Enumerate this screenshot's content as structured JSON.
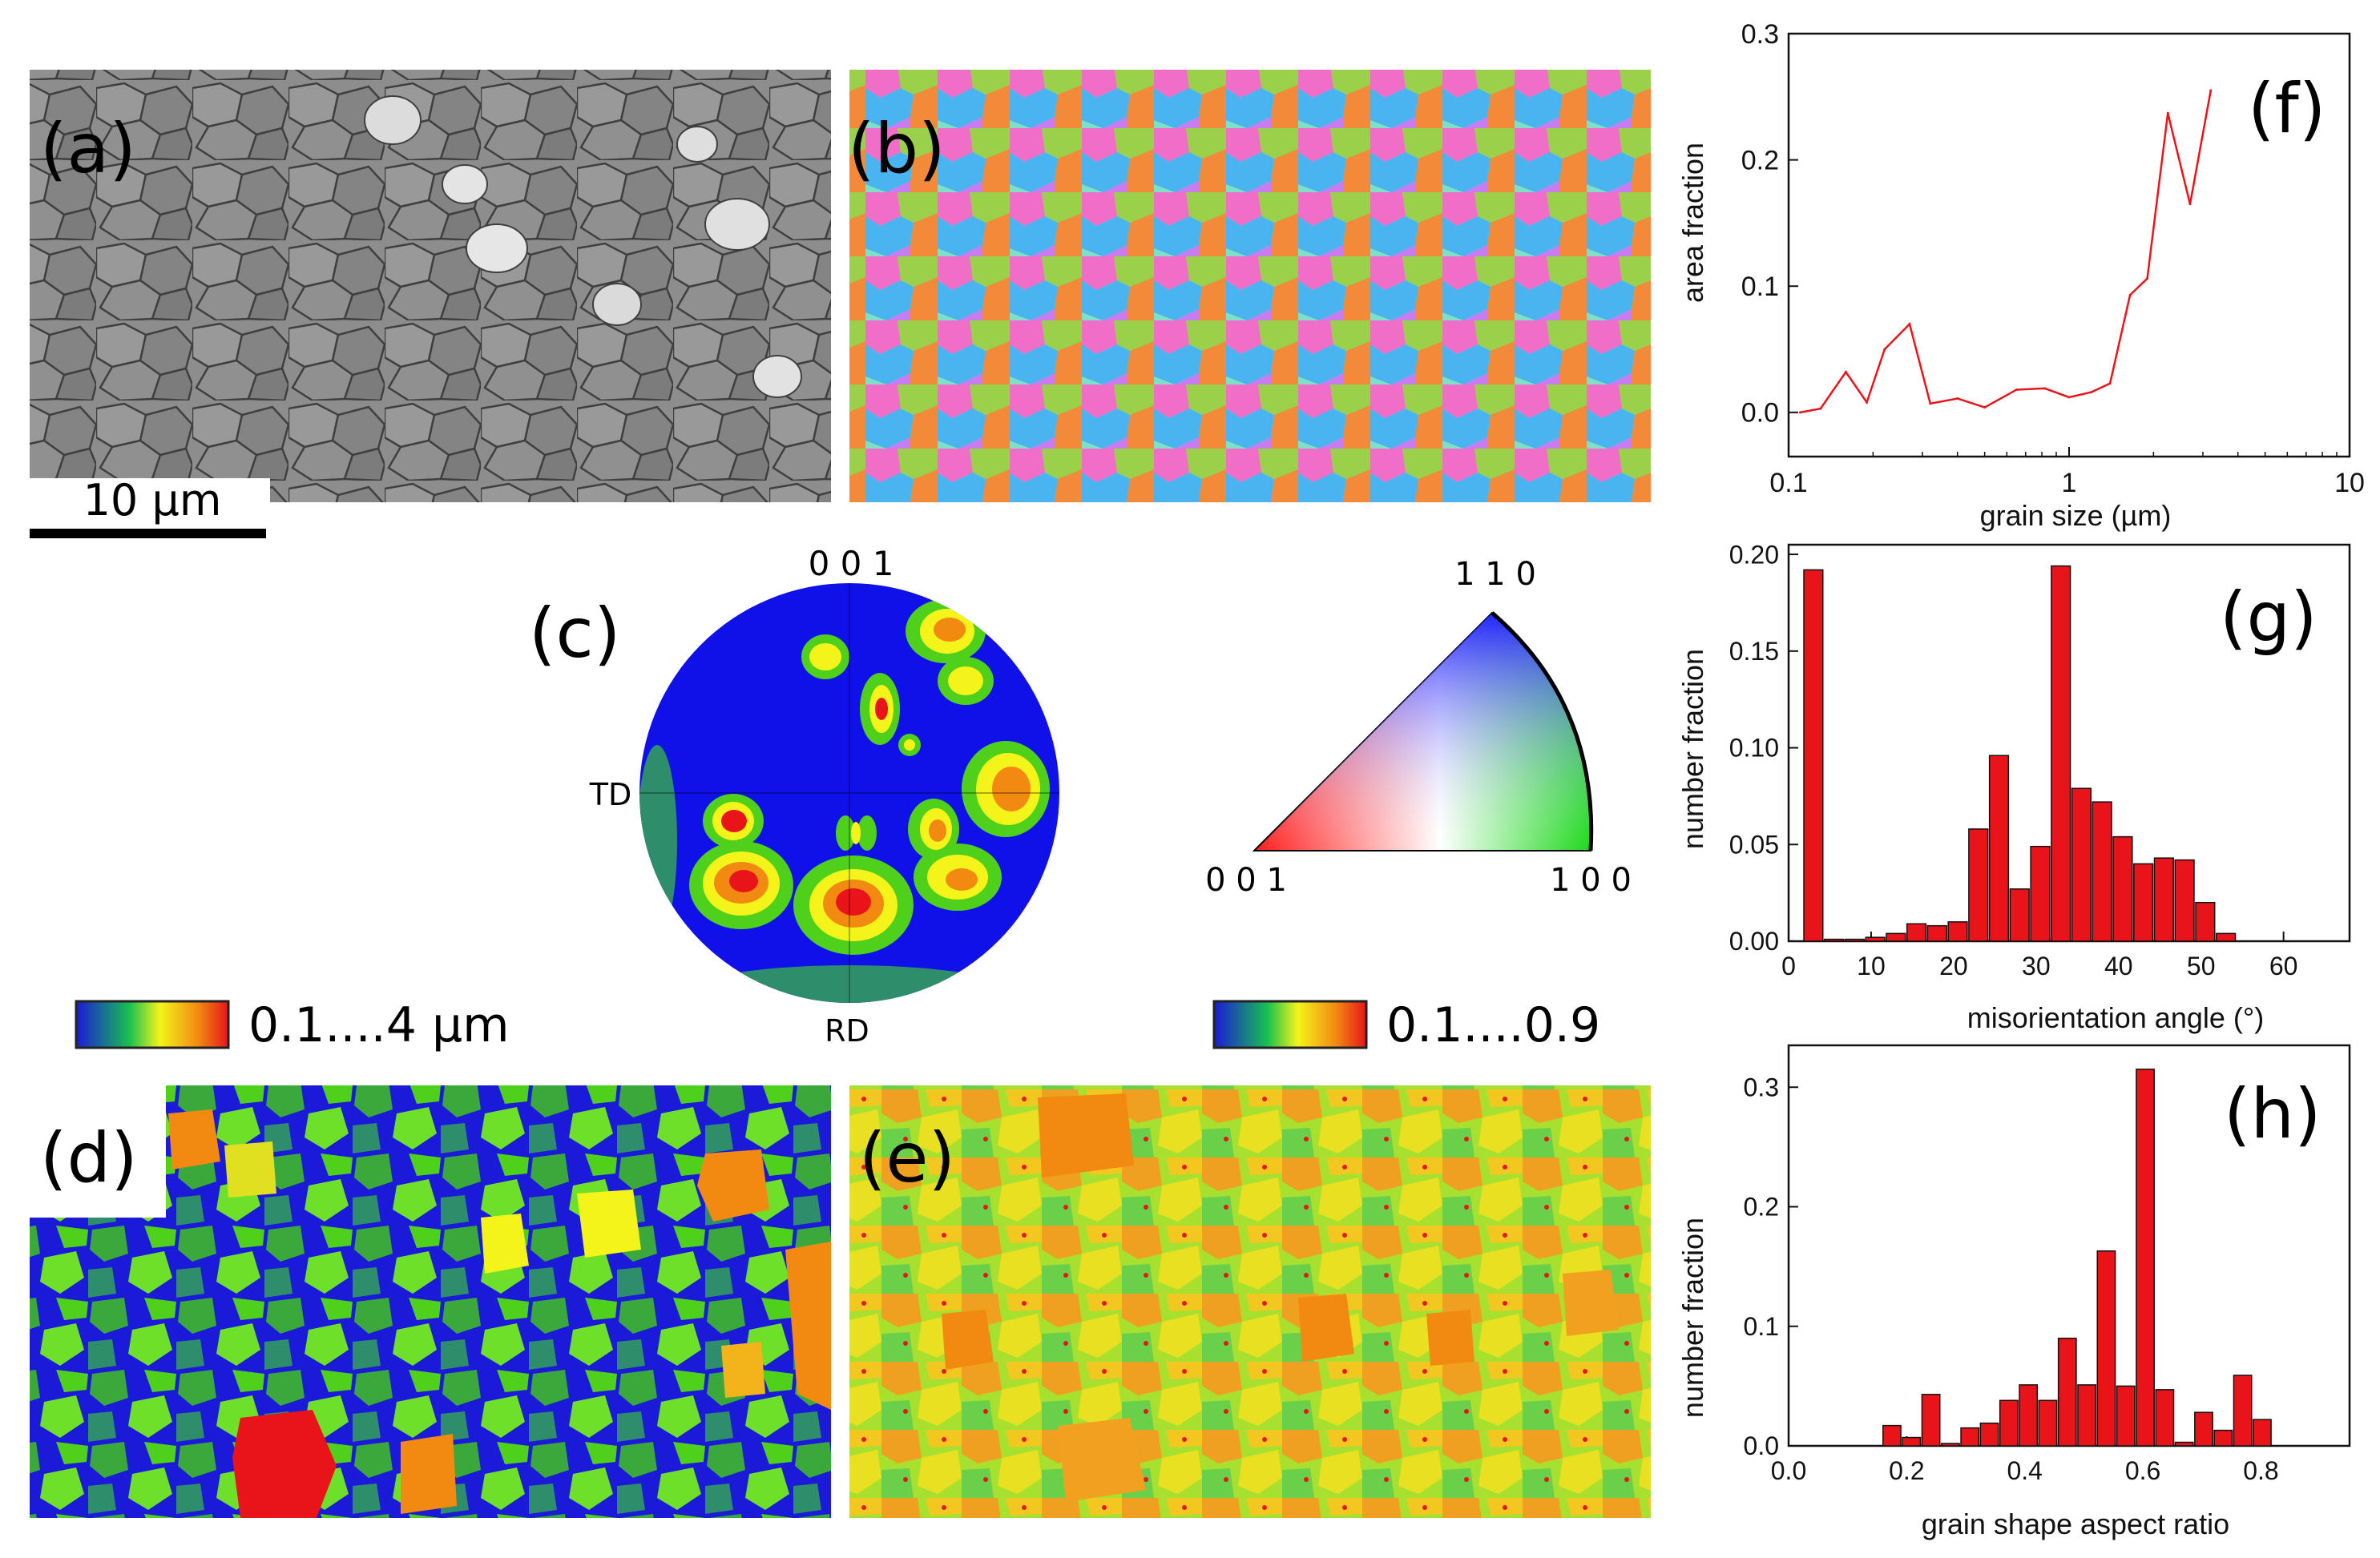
{
  "panel_labels": [
    "(a)",
    "(b)",
    "(c)",
    "(d)",
    "(e)",
    "(f)",
    "(g)",
    "(h)"
  ],
  "scale_bar": "10 µm",
  "pole_figure": {
    "top": "0 0 1",
    "left": "TD",
    "bottom": "RD"
  },
  "ipf_triangle": {
    "corner_001": "0 0 1",
    "corner_100": "1 0 0",
    "corner_110": "1 1 0"
  },
  "colorbar_d": "0.1....4 µm",
  "colorbar_e": "0.1....0.9",
  "colors": {
    "accent": "#e8141a",
    "ebsd_blue": "#1a1ad8",
    "ebsd_green": "#4fd11c",
    "ebsd_orange": "#f28a12"
  },
  "chart_data": [
    {
      "id": "f",
      "type": "line",
      "title": "",
      "xlabel": "grain size (µm)",
      "ylabel": "area fraction",
      "xscale": "log",
      "xlim": [
        0.1,
        10
      ],
      "ylim": [
        -0.035,
        0.3
      ],
      "xticks": [
        0.1,
        1,
        10
      ],
      "xtick_labels": [
        "0.1",
        "1",
        "10"
      ],
      "yticks": [
        0.0,
        0.1,
        0.2,
        0.3
      ],
      "ytick_labels": [
        "0.0",
        "0.1",
        "0.2",
        "0.3"
      ],
      "color": "#e8141a",
      "x": [
        0.11,
        0.13,
        0.16,
        0.19,
        0.22,
        0.27,
        0.32,
        0.4,
        0.5,
        0.65,
        0.82,
        1.0,
        1.2,
        1.4,
        1.65,
        1.9,
        2.25,
        2.7,
        3.2
      ],
      "y": [
        0.0,
        0.003,
        0.032,
        0.008,
        0.05,
        0.07,
        0.007,
        0.011,
        0.004,
        0.018,
        0.019,
        0.012,
        0.016,
        0.023,
        0.093,
        0.106,
        0.237,
        0.165,
        0.255
      ]
    },
    {
      "id": "g",
      "type": "bar",
      "title": "",
      "xlabel": "misorientation angle (°)",
      "ylabel": "number fraction",
      "xlim": [
        0,
        68
      ],
      "ylim": [
        0,
        0.205
      ],
      "xticks": [
        0,
        10,
        20,
        30,
        40,
        50,
        60
      ],
      "xtick_labels": [
        "0",
        "10",
        "20",
        "30",
        "40",
        "50",
        "60"
      ],
      "yticks": [
        0.0,
        0.05,
        0.1,
        0.15,
        0.2
      ],
      "ytick_labels": [
        "0.00",
        "0.05",
        "0.10",
        "0.15",
        "0.20"
      ],
      "bin_width": 2.5,
      "color": "#e8141a",
      "x": [
        3,
        5.5,
        8,
        10.5,
        13,
        15.5,
        18,
        20.5,
        23,
        25.5,
        28,
        30.5,
        33,
        35.5,
        38,
        40.5,
        43,
        45.5,
        48,
        50.5,
        53,
        55.5,
        58,
        60.5
      ],
      "values": [
        0.192,
        0.001,
        0.001,
        0.002,
        0.004,
        0.009,
        0.008,
        0.01,
        0.058,
        0.096,
        0.027,
        0.049,
        0.194,
        0.079,
        0.072,
        0.054,
        0.04,
        0.043,
        0.042,
        0.02,
        0.004,
        0.0,
        0.0,
        0.0
      ]
    },
    {
      "id": "h",
      "type": "bar",
      "title": "",
      "xlabel": "grain shape aspect ratio",
      "ylabel": "number fraction",
      "xlim": [
        0,
        0.95
      ],
      "ylim": [
        0,
        0.335
      ],
      "xticks": [
        0.0,
        0.2,
        0.4,
        0.6,
        0.8
      ],
      "xtick_labels": [
        "0.0",
        "0.2",
        "0.4",
        "0.6",
        "0.8"
      ],
      "yticks": [
        0.0,
        0.1,
        0.2,
        0.3
      ],
      "ytick_labels": [
        "0.0",
        "0.1",
        "0.2",
        "0.3"
      ],
      "bin_width": 0.033,
      "color": "#e8141a",
      "x": [
        0.175,
        0.208,
        0.241,
        0.274,
        0.307,
        0.34,
        0.373,
        0.406,
        0.439,
        0.472,
        0.505,
        0.538,
        0.571,
        0.604,
        0.637,
        0.67,
        0.703,
        0.736,
        0.769,
        0.802
      ],
      "values": [
        0.017,
        0.007,
        0.043,
        0.002,
        0.015,
        0.019,
        0.038,
        0.051,
        0.038,
        0.09,
        0.051,
        0.163,
        0.05,
        0.315,
        0.047,
        0.003,
        0.028,
        0.013,
        0.059,
        0.022
      ]
    }
  ]
}
